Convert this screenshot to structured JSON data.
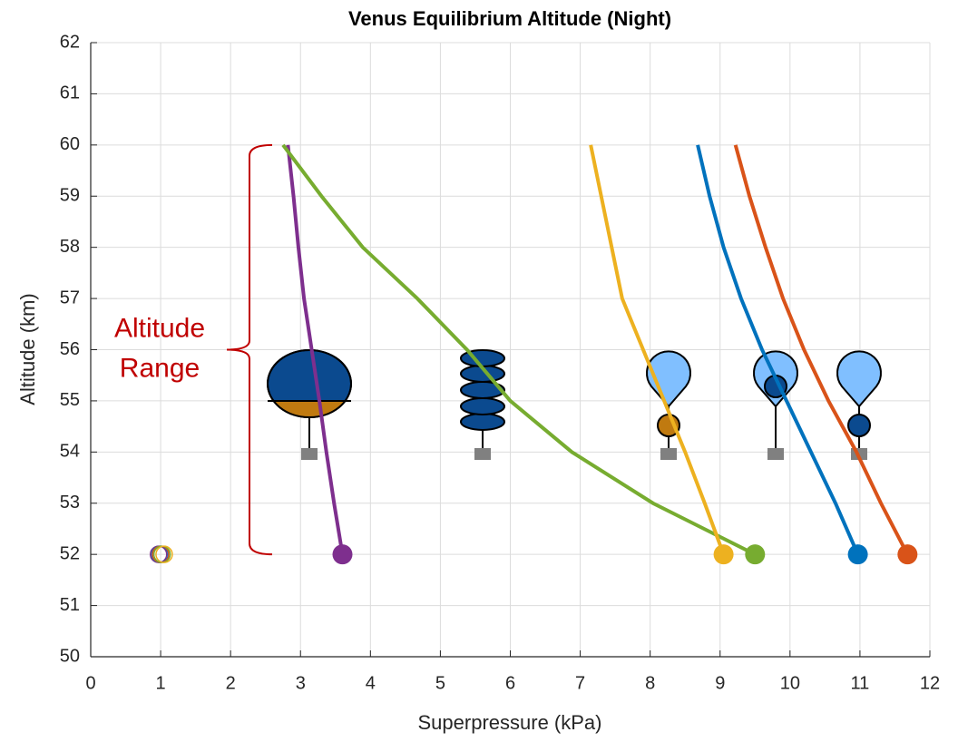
{
  "chart_data": {
    "type": "line",
    "title": "Venus Equilibrium Altitude (Night)",
    "x_label": "Superpressure (kPa)",
    "y_label": "Altitude (km)",
    "xlim": [
      0,
      12
    ],
    "xticks": [
      0,
      1,
      2,
      3,
      4,
      5,
      6,
      7,
      8,
      9,
      10,
      11,
      12
    ],
    "ylim": [
      50,
      62
    ],
    "yticks": [
      50,
      51,
      52,
      53,
      54,
      55,
      56,
      57,
      58,
      59,
      60,
      61,
      62
    ],
    "grid": true,
    "annotation": [
      "Altitude",
      "Range"
    ],
    "annotation_range": [
      52,
      60
    ],
    "series": [
      {
        "color": "#7E2F8E",
        "open_marker_x": 0.97,
        "x": [
          3.6,
          3.48,
          3.37,
          3.27,
          3.16,
          3.05,
          2.97,
          2.9,
          2.82
        ],
        "values": [
          52,
          53,
          54,
          55,
          56,
          57,
          58,
          59,
          60
        ]
      },
      {
        "color": "#0072BD",
        "open_marker_x": 0.99,
        "x": [
          10.97,
          10.65,
          10.3,
          9.95,
          9.6,
          9.3,
          9.05,
          8.85,
          8.68
        ],
        "values": [
          52,
          53,
          54,
          55,
          56,
          57,
          58,
          59,
          60
        ]
      },
      {
        "color": "#D95319",
        "open_marker_x": 1.0,
        "x": [
          11.68,
          11.3,
          10.95,
          10.55,
          10.2,
          9.9,
          9.65,
          9.42,
          9.22
        ],
        "values": [
          52,
          53,
          54,
          55,
          56,
          57,
          58,
          59,
          60
        ]
      },
      {
        "color": "#77AC30",
        "open_marker_x": 1.02,
        "x": [
          9.5,
          8.04,
          6.88,
          6.0,
          5.38,
          4.67,
          3.89,
          3.3,
          2.75
        ],
        "values": [
          52,
          53,
          54,
          55,
          56,
          57,
          58,
          59,
          60
        ]
      },
      {
        "color": "#EDB120",
        "open_marker_x": 1.05,
        "x": [
          9.05,
          8.78,
          8.5,
          8.2,
          7.9,
          7.6,
          7.45,
          7.3,
          7.15
        ],
        "values": [
          52,
          53,
          54,
          55,
          56,
          57,
          58,
          59,
          60
        ]
      }
    ]
  }
}
